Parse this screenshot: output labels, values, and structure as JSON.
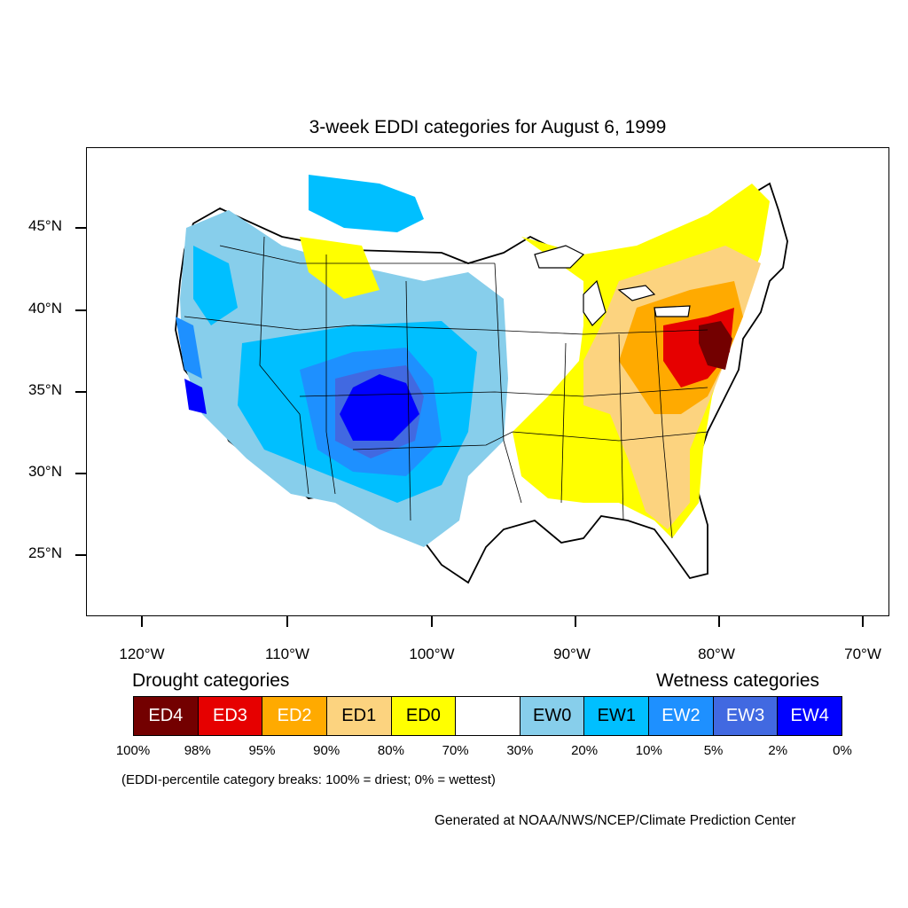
{
  "title": "3-week EDDI categories for August 6, 1999",
  "lat_labels": [
    "45°N",
    "40°N",
    "35°N",
    "30°N",
    "25°N"
  ],
  "lon_labels": [
    "120°W",
    "110°W",
    "100°W",
    "90°W",
    "80°W",
    "70°W"
  ],
  "legend": {
    "drought_title": "Drought categories",
    "wetness_title": "Wetness categories",
    "categories": [
      {
        "label": "ED4",
        "color": "#730000",
        "text_color": "#ffffff"
      },
      {
        "label": "ED3",
        "color": "#e60000",
        "text_color": "#ffffff"
      },
      {
        "label": "ED2",
        "color": "#ffaa00",
        "text_color": "#ffffff"
      },
      {
        "label": "ED1",
        "color": "#fcd37f",
        "text_color": "#000000"
      },
      {
        "label": "ED0",
        "color": "#ffff00",
        "text_color": "#000000"
      },
      {
        "label": "",
        "color": "#ffffff",
        "text_color": "#000000"
      },
      {
        "label": "EW0",
        "color": "#87ceeb",
        "text_color": "#000000"
      },
      {
        "label": "EW1",
        "color": "#00bfff",
        "text_color": "#000000"
      },
      {
        "label": "EW2",
        "color": "#1e90ff",
        "text_color": "#ffffff"
      },
      {
        "label": "EW3",
        "color": "#4169e1",
        "text_color": "#ffffff"
      },
      {
        "label": "EW4",
        "color": "#0000ff",
        "text_color": "#ffffff"
      }
    ],
    "breaks": [
      "100%",
      "98%",
      "95%",
      "90%",
      "80%",
      "70%",
      "30%",
      "20%",
      "10%",
      "5%",
      "2%",
      "0%"
    ]
  },
  "note": "(EDDI-percentile category breaks: 100% = driest; 0% = wettest)",
  "credit": "Generated at NOAA/NWS/NCEP/Climate Prediction Center"
}
